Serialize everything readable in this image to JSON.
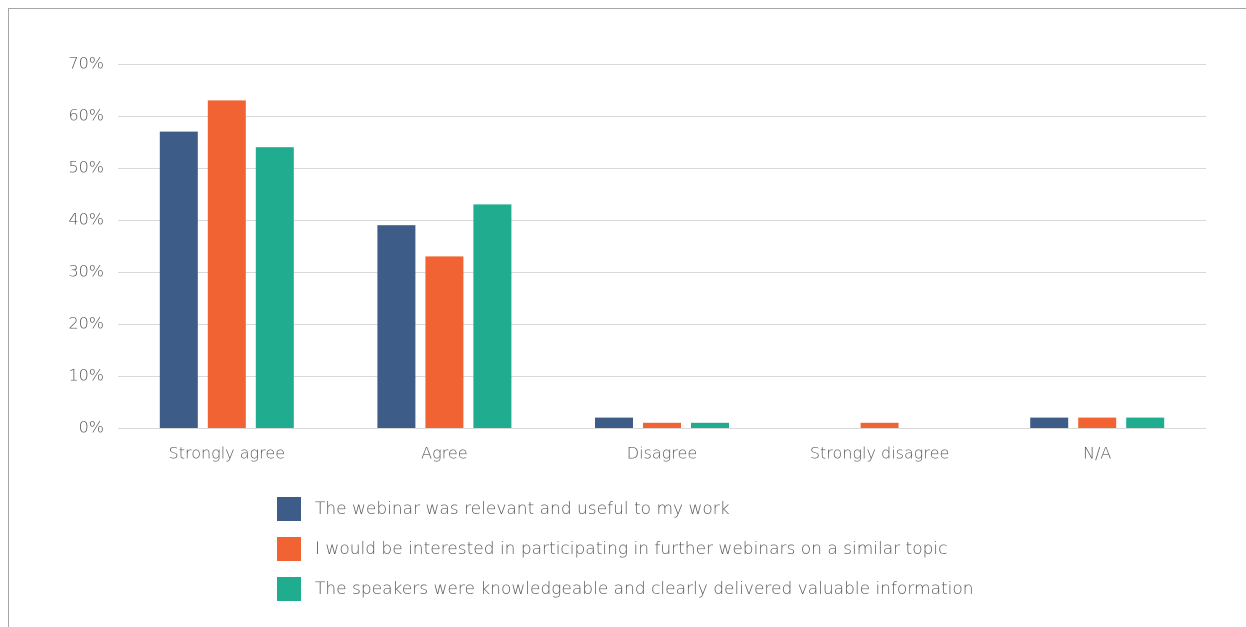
{
  "chart_data": {
    "type": "bar",
    "categories": [
      "Strongly agree",
      "Agree",
      "Disagree",
      "Strongly disagree",
      "N/A"
    ],
    "series": [
      {
        "name": "The webinar was relevant and useful to my work",
        "color": "#3e5c88",
        "values": [
          57,
          39,
          2,
          0,
          2
        ]
      },
      {
        "name": "I would be interested in participating in further webinars on a similar topic",
        "color": "#f26334",
        "values": [
          63,
          33,
          1,
          1,
          2
        ]
      },
      {
        "name": "The speakers were knowledgeable and clearly delivered valuable information",
        "color": "#1fac8f",
        "values": [
          54,
          43,
          1,
          0,
          2
        ]
      }
    ],
    "ylim": [
      0,
      70
    ],
    "yticks": [
      {
        "value": 0,
        "label": "0%"
      },
      {
        "value": 10,
        "label": "10%"
      },
      {
        "value": 20,
        "label": "20%"
      },
      {
        "value": 30,
        "label": "30%"
      },
      {
        "value": 40,
        "label": "40%"
      },
      {
        "value": 50,
        "label": "50%"
      },
      {
        "value": 60,
        "label": "60%"
      },
      {
        "value": 70,
        "label": "70%"
      }
    ],
    "grid": true,
    "legend": "bottom"
  }
}
